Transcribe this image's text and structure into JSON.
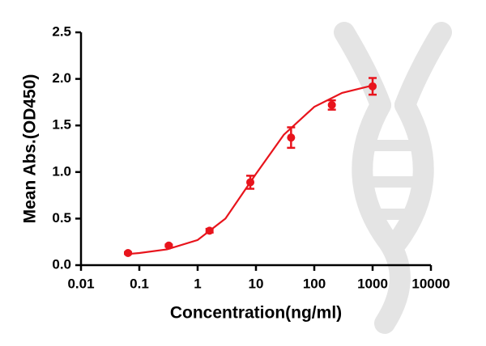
{
  "chart_data": {
    "type": "scatter",
    "x_label": "Concentration(ng/ml)",
    "y_label": "Mean Abs.(OD450)",
    "xscale": "log",
    "xlim": [
      0.01,
      10000
    ],
    "xticks": [
      0.01,
      0.1,
      1,
      10,
      100,
      1000,
      10000
    ],
    "ylim": [
      0,
      2.5
    ],
    "yticks": [
      {
        "value": 0,
        "label": "0.0"
      },
      {
        "value": 0.5,
        "label": "0.5"
      },
      {
        "value": 1,
        "label": "1.0"
      },
      {
        "value": 1.5,
        "label": "1.5"
      },
      {
        "value": 2,
        "label": "2.0"
      },
      {
        "value": 2.5,
        "label": "2.5"
      }
    ],
    "series": [
      {
        "color": "#e8141c",
        "x": [
          0.064,
          0.32,
          1.6,
          8,
          40,
          200,
          1000
        ],
        "values": [
          0.13,
          0.21,
          0.37,
          0.89,
          1.37,
          1.72,
          1.92
        ],
        "errors": [
          0.01,
          0.01,
          0.02,
          0.07,
          0.11,
          0.05,
          0.09
        ]
      },
      {
        "type": "line",
        "color": "#e8141c",
        "x": [
          0.064,
          0.1,
          0.3,
          1,
          3,
          10,
          30,
          100,
          300,
          1000
        ],
        "values": [
          0.12,
          0.13,
          0.17,
          0.27,
          0.5,
          0.98,
          1.4,
          1.7,
          1.85,
          1.93
        ]
      }
    ]
  }
}
